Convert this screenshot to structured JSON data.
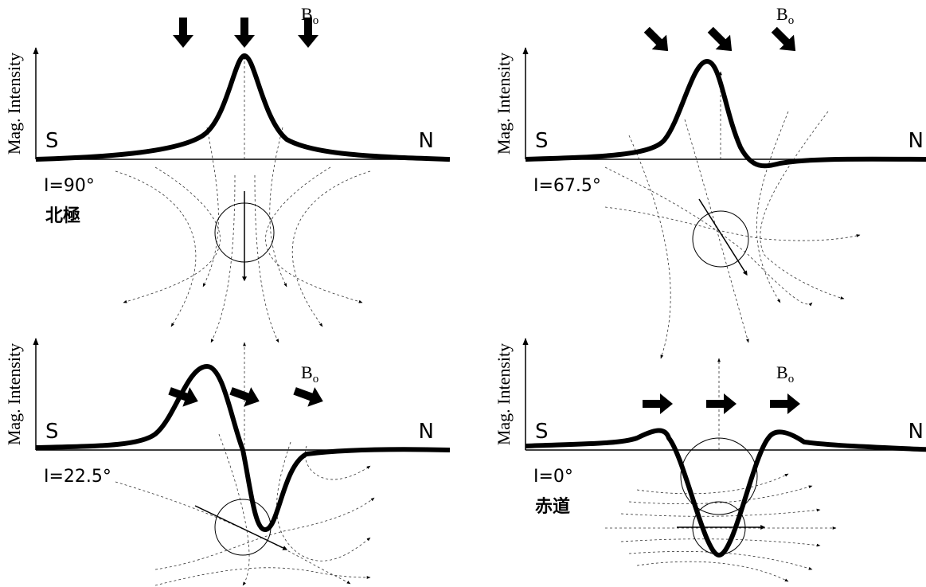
{
  "panels": [
    {
      "y_axis_label": "Mag. Intensity",
      "left_label": "S",
      "right_label": "N",
      "field": {
        "base": "B",
        "sub": "o"
      },
      "inclination": "I=90°",
      "location": "北極"
    },
    {
      "y_axis_label": "Mag. Intensity",
      "left_label": "S",
      "right_label": "N",
      "field": {
        "base": "B",
        "sub": "o"
      },
      "inclination": "I=67.5°"
    },
    {
      "y_axis_label": "Mag. Intensity",
      "left_label": "S",
      "right_label": "N",
      "field": {
        "base": "B",
        "sub": "o"
      },
      "inclination": "I=22.5°"
    },
    {
      "y_axis_label": "Mag. Intensity",
      "left_label": "S",
      "right_label": "N",
      "field": {
        "base": "B",
        "sub": "o"
      },
      "inclination": "I=0°",
      "location": "赤道"
    }
  ]
}
